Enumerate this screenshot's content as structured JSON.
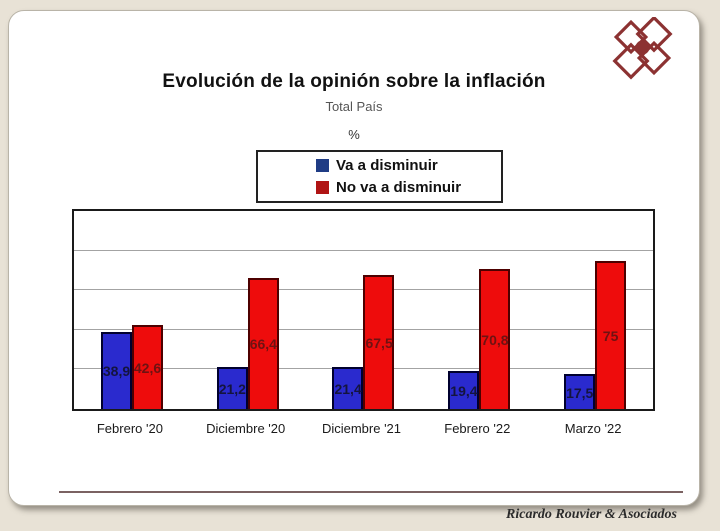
{
  "header": {
    "title": "Evolución de la opinión sobre la inflación",
    "subtitle": "Total País",
    "unit": "%"
  },
  "footer": {
    "credit": "Ricardo Rouvier & Asociados"
  },
  "logo": {
    "name": "ricardo-rouvier-logo",
    "color": "#8c3232"
  },
  "chart_data": {
    "type": "bar",
    "title": "Evolución de la opinión sobre la inflación",
    "subtitle": "Total País",
    "unit": "%",
    "categories": [
      "Febrero '20",
      "Diciembre '20",
      "Diciembre '21",
      "Febrero '22",
      "Marzo '22"
    ],
    "series": [
      {
        "name": "Va a disminuir",
        "values": [
          38.9,
          21.2,
          21.4,
          19.4,
          17.5
        ],
        "labels": [
          "38,9",
          "21,2",
          "21,4",
          "19,4",
          "17,5"
        ],
        "fill": "#2a2ace",
        "border": "#00002e",
        "label_color": "#14143e",
        "legend_color": "#1f3c85"
      },
      {
        "name": "No va a disminuir",
        "values": [
          42.6,
          66.4,
          67.5,
          70.8,
          75
        ],
        "labels": [
          "42,6",
          "66,4",
          "67,5",
          "70,8",
          "75"
        ],
        "fill": "#ee0c0c",
        "border": "#4d0000",
        "label_color": "#6e1212",
        "legend_color": "#b01414"
      }
    ],
    "ylim": [
      0,
      100
    ],
    "gridlines": [
      20,
      40,
      60,
      80
    ],
    "grid": true,
    "y_axis_labels_visible": false,
    "legend_position": "top-center",
    "xlabel": "",
    "ylabel": ""
  }
}
